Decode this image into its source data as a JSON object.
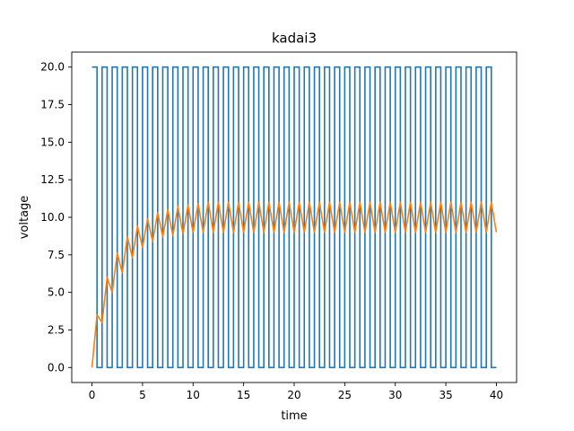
{
  "chart_data": {
    "type": "line",
    "title": "kadai3",
    "xlabel": "time",
    "ylabel": "voltage",
    "xlim": [
      -2.0,
      42.0
    ],
    "ylim": [
      -1.0,
      21.0
    ],
    "x_ticks": [
      0,
      5,
      10,
      15,
      20,
      25,
      30,
      35,
      40
    ],
    "x_tick_labels": [
      "0",
      "5",
      "10",
      "15",
      "20",
      "25",
      "30",
      "35",
      "40"
    ],
    "y_ticks": [
      0,
      2.5,
      5,
      7.5,
      10,
      12.5,
      15,
      17.5,
      20
    ],
    "y_tick_labels": [
      "0.0",
      "2.5",
      "5.0",
      "7.5",
      "10.0",
      "12.5",
      "15.0",
      "17.5",
      "20.0"
    ],
    "grid": false,
    "legend": "none",
    "series": [
      {
        "color": "#1f77b4",
        "style": "square-wave",
        "high": 20.0,
        "low": 0.0,
        "period": 1.0,
        "duty_high": 0.5,
        "x_start": 0.0,
        "x_end": 40.0
      },
      {
        "color": "#ff7f0e",
        "style": "triangle-charging",
        "start_value": 0.0,
        "peaks_x": [
          0.5,
          1.5,
          2.5,
          3.5,
          4.5,
          5.5,
          6.5,
          7.5,
          8.5,
          9.5,
          10.5
        ],
        "peaks_y": [
          3.5,
          6.0,
          7.6,
          8.7,
          9.4,
          9.9,
          10.3,
          10.5,
          10.7,
          10.8,
          10.9
        ],
        "troughs_x": [
          1.0,
          2.0,
          3.0,
          4.0,
          5.0,
          6.0,
          7.0,
          8.0,
          9.0,
          10.0,
          11.0
        ],
        "troughs_y": [
          3.0,
          5.0,
          6.3,
          7.3,
          8.0,
          8.4,
          8.7,
          8.8,
          8.9,
          9.0,
          9.0
        ],
        "steady_peak": 11.0,
        "steady_trough": 9.0,
        "x_end": 40.0,
        "end_value": 9.0
      }
    ]
  }
}
